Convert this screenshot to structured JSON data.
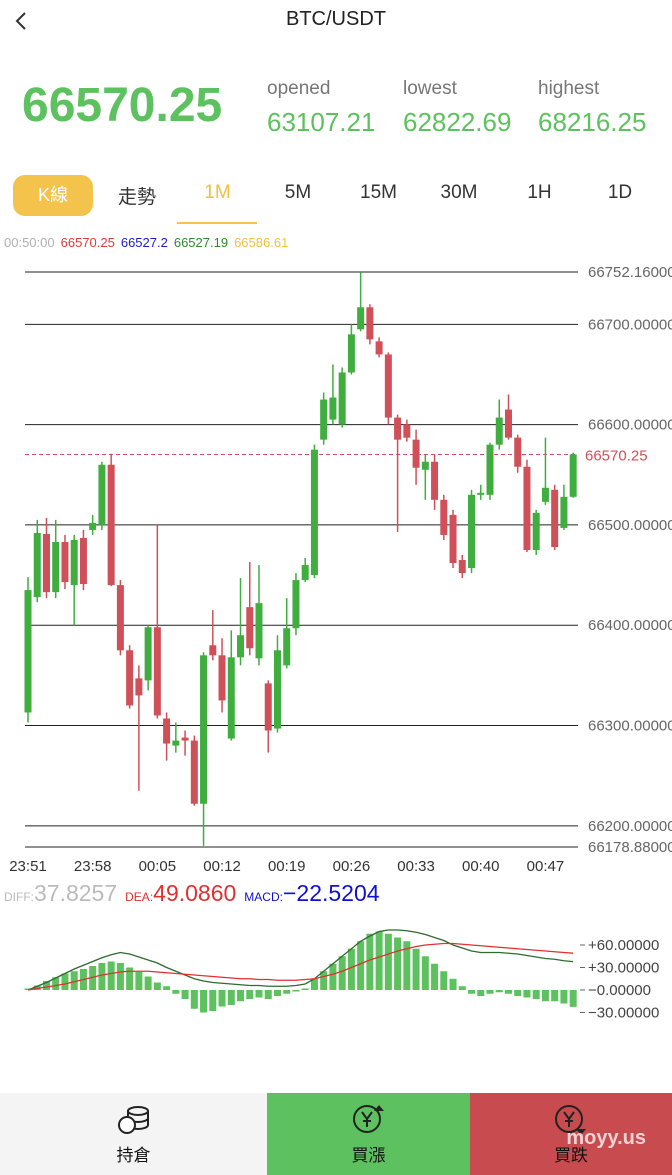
{
  "header": {
    "title": "BTC/USDT"
  },
  "summary": {
    "price": "66570.25",
    "stats": [
      {
        "label": "opened",
        "value": "63107.21"
      },
      {
        "label": "lowest",
        "value": "62822.69"
      },
      {
        "label": "highest",
        "value": "68216.25"
      }
    ]
  },
  "tabs": [
    "K線",
    "走勢",
    "1M",
    "5M",
    "15M",
    "30M",
    "1H",
    "1D"
  ],
  "active_tab": 2,
  "legend": [
    {
      "text": "00:50:00",
      "color": "#b0b0b0"
    },
    {
      "text": "66570.25",
      "color": "#e03a3a"
    },
    {
      "text": "66527.2",
      "color": "#1c1cd0"
    },
    {
      "text": "66527.19",
      "color": "#2e8b2e"
    },
    {
      "text": "66586.61",
      "color": "#f0c040"
    }
  ],
  "chart_data": [
    {
      "type": "candlestick",
      "categories": [
        "23:51",
        null,
        null,
        null,
        null,
        null,
        null,
        "23:58",
        null,
        null,
        null,
        null,
        null,
        null,
        "00:05",
        null,
        null,
        null,
        null,
        null,
        null,
        "00:12",
        null,
        null,
        null,
        null,
        null,
        null,
        "00:19",
        null,
        null,
        null,
        null,
        null,
        null,
        "00:26",
        null,
        null,
        null,
        null,
        null,
        null,
        "00:33",
        null,
        null,
        null,
        null,
        null,
        null,
        "00:40",
        null,
        null,
        null,
        null,
        null,
        null,
        "00:47",
        null,
        null,
        null
      ],
      "open": [
        66313,
        66428,
        66491,
        66433,
        66483,
        66440,
        66487,
        66495,
        66500,
        66560,
        66440,
        66375,
        66347,
        66345,
        66398,
        66307,
        66280,
        66288,
        66285,
        66222,
        66380,
        66370,
        66287,
        66368,
        66418,
        66367,
        66342,
        66297,
        66360,
        66397,
        66445,
        66450,
        66585,
        66605,
        66600,
        66652,
        66695,
        66717,
        66683,
        66670,
        66607,
        66600,
        66585,
        66555,
        66563,
        66525,
        66510,
        66465,
        66457,
        66530,
        66530,
        66580,
        66615,
        66587,
        66558,
        66475,
        66523,
        66535,
        66497,
        66528
      ],
      "high": [
        66448,
        66505,
        66507,
        66505,
        66490,
        66490,
        66495,
        66510,
        66563,
        66571,
        66445,
        66380,
        66360,
        66400,
        66500,
        66313,
        66303,
        66295,
        66290,
        66373,
        66415,
        66387,
        66395,
        66447,
        66463,
        66460,
        66345,
        66390,
        66427,
        66452,
        66467,
        66580,
        66632,
        66660,
        66657,
        66700,
        66752,
        66720,
        66687,
        66672,
        66610,
        66605,
        66595,
        66570,
        66570,
        66530,
        66515,
        66470,
        66535,
        66540,
        66582,
        66625,
        66630,
        66590,
        66565,
        66515,
        66587,
        66540,
        66540,
        66572
      ],
      "low": [
        66303,
        66423,
        66427,
        66427,
        66436,
        66400,
        66435,
        66490,
        66495,
        66439,
        66370,
        66317,
        66235,
        66335,
        66307,
        66265,
        66273,
        66270,
        66220,
        66180,
        66365,
        66313,
        66285,
        66360,
        66370,
        66360,
        66273,
        66293,
        66357,
        66390,
        66443,
        66447,
        66580,
        66600,
        66597,
        66650,
        66693,
        66680,
        66667,
        66600,
        66493,
        66583,
        66540,
        66525,
        66515,
        66485,
        66457,
        66447,
        66452,
        66525,
        66525,
        66575,
        66585,
        66552,
        66473,
        66470,
        66520,
        66475,
        66495,
        66527
      ],
      "close": [
        66435,
        66492,
        66433,
        66483,
        66443,
        66485,
        66441,
        66502,
        66560,
        66440,
        66375,
        66320,
        66330,
        66398,
        66310,
        66282,
        66285,
        66285,
        66222,
        66370,
        66370,
        66325,
        66368,
        66390,
        66377,
        66422,
        66295,
        66375,
        66397,
        66445,
        66460,
        66575,
        66625,
        66627,
        66652,
        66690,
        66717,
        66685,
        66670,
        66607,
        66585,
        66587,
        66557,
        66563,
        66525,
        66490,
        66462,
        66452,
        66530,
        66532,
        66580,
        66607,
        66587,
        66558,
        66475,
        66512,
        66537,
        66478,
        66528,
        66570.25
      ],
      "up_color": "#3fae3f",
      "down_color": "#d0505a",
      "ylim": [
        66178.88,
        66752.16
      ],
      "yticks": [
        {
          "value": 66178.88,
          "label": "66178.88000"
        },
        {
          "value": 66200,
          "label": "66200.00000"
        },
        {
          "value": 66300,
          "label": "66300.00000"
        },
        {
          "value": 66400,
          "label": "66400.00000"
        },
        {
          "value": 66500,
          "label": "66500.00000"
        },
        {
          "value": 66600,
          "label": "66600.00000"
        },
        {
          "value": 66700,
          "label": "66700.00000"
        },
        {
          "value": 66752.16,
          "label": "66752.16000"
        }
      ],
      "grid": true,
      "price_line": {
        "value": 66570.25,
        "label": "66570.25",
        "color": "#d0505a"
      }
    },
    {
      "type": "macd",
      "header": [
        {
          "label": "DIFF:",
          "value": "37.8257",
          "color": "#bbbbbb"
        },
        {
          "label": "DEA:",
          "value": "49.0860",
          "color": "#e03030"
        },
        {
          "label": "MACD:",
          "value": "−22.5204",
          "color": "#1010d0"
        }
      ],
      "bar_color": "#5cc15e",
      "values": [
        2,
        6,
        12,
        17,
        22,
        25,
        28,
        32,
        36,
        38,
        36,
        30,
        24,
        18,
        10,
        5,
        -5,
        -12,
        -25,
        -30,
        -28,
        -22,
        -20,
        -15,
        -12,
        -10,
        -12,
        -8,
        -5,
        -2,
        2,
        15,
        25,
        35,
        45,
        55,
        65,
        75,
        78,
        75,
        70,
        65,
        55,
        45,
        35,
        25,
        15,
        5,
        -5,
        -8,
        -5,
        -3,
        -5,
        -8,
        -10,
        -12,
        -15,
        -15,
        -18,
        -22.5204
      ],
      "series": [
        {
          "name": "DIFF",
          "color": "#2e6b2e",
          "values": [
            0,
            5,
            10,
            16,
            22,
            28,
            33,
            38,
            43,
            47,
            50,
            48,
            44,
            40,
            36,
            30,
            25,
            20,
            15,
            12,
            10,
            9,
            8,
            7,
            6,
            6,
            5,
            5,
            5,
            6,
            8,
            15,
            25,
            35,
            45,
            55,
            65,
            72,
            78,
            80,
            80,
            79,
            77,
            74,
            70,
            66,
            60,
            56,
            52,
            50,
            50,
            50,
            49,
            48,
            46,
            44,
            42,
            41,
            39,
            37.8257
          ]
        },
        {
          "name": "DEA",
          "color": "#e03030",
          "values": [
            0,
            2,
            4,
            6,
            8,
            11,
            14,
            17,
            20,
            22,
            24,
            25,
            25,
            25,
            24,
            23,
            22,
            21,
            20,
            19,
            18,
            17,
            16,
            15,
            15,
            14,
            14,
            13,
            13,
            13,
            14,
            15,
            18,
            21,
            25,
            30,
            35,
            40,
            44,
            48,
            52,
            55,
            58,
            60,
            61,
            62,
            62,
            61,
            60,
            59,
            58,
            57,
            56,
            55,
            54,
            53,
            52,
            51,
            50,
            49.086
          ]
        }
      ],
      "ylim": [
        -40,
        80
      ],
      "yticks": [
        {
          "value": 60,
          "label": "+60.00000"
        },
        {
          "value": 30,
          "label": "+30.00000"
        },
        {
          "value": 0,
          "label": "−0.00000"
        },
        {
          "value": -30,
          "label": "−30.00000"
        }
      ]
    }
  ],
  "footer": {
    "buttons": [
      "持倉",
      "買漲",
      "買跌"
    ]
  },
  "watermark": "moyy.us"
}
